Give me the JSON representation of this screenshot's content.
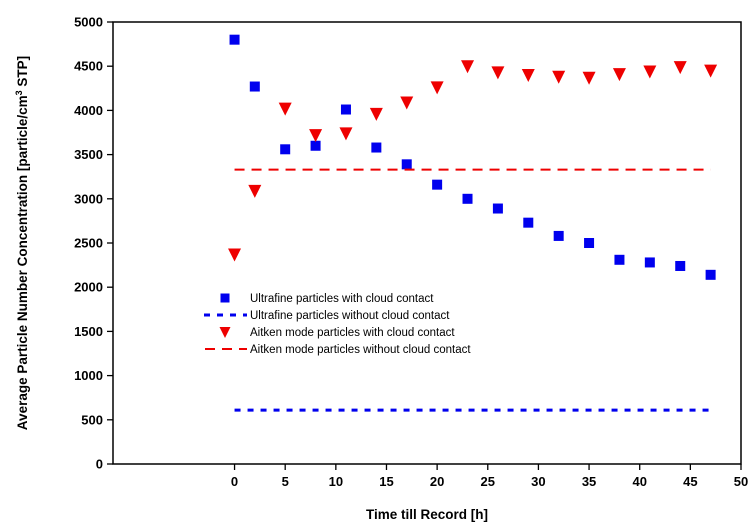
{
  "chart_data": {
    "type": "scatter",
    "title": "",
    "xlabel": "Time till Record [h]",
    "ylabel_main": "Average Particle Number Concentration [particle/cm",
    "ylabel_sup": "3",
    "ylabel_tail": " STP]",
    "xlim": [
      -12,
      50
    ],
    "ylim": [
      0,
      5000
    ],
    "xticks": [
      0,
      5,
      10,
      15,
      20,
      25,
      30,
      35,
      40,
      45,
      50
    ],
    "yticks": [
      0,
      500,
      1000,
      1500,
      2000,
      2500,
      3000,
      3500,
      4000,
      4500,
      5000
    ],
    "grid": false,
    "legend_position": "center-left",
    "series": [
      {
        "name": "Ultrafine particles with cloud contact",
        "kind": "points",
        "marker": "square",
        "color": "#0000ee",
        "x": [
          0,
          2,
          5,
          8,
          11,
          14,
          17,
          20,
          23,
          26,
          29,
          32,
          35,
          38,
          41,
          44,
          47
        ],
        "y": [
          4800,
          4270,
          3560,
          3600,
          4010,
          3580,
          3390,
          3160,
          3000,
          2890,
          2730,
          2580,
          2500,
          2310,
          2280,
          2240,
          2140
        ]
      },
      {
        "name": "Ultrafine particles without cloud contact",
        "kind": "line",
        "dash": "dotted",
        "color": "#0000ee",
        "x": [
          0,
          47
        ],
        "y": [
          610,
          610
        ]
      },
      {
        "name": "Aitken mode particles with cloud contact",
        "kind": "points",
        "marker": "triangle-down",
        "color": "#ee0000",
        "x": [
          0,
          2,
          5,
          8,
          11,
          14,
          17,
          20,
          23,
          26,
          29,
          32,
          35,
          38,
          41,
          44,
          47
        ],
        "y": [
          2370,
          3090,
          4020,
          3720,
          3740,
          3960,
          4090,
          4260,
          4500,
          4430,
          4400,
          4380,
          4370,
          4410,
          4440,
          4490,
          4450
        ]
      },
      {
        "name": "Aitken mode particles without cloud contact",
        "kind": "line",
        "dash": "dashed",
        "color": "#ee0000",
        "x": [
          0,
          47
        ],
        "y": [
          3330,
          3330
        ]
      }
    ]
  }
}
